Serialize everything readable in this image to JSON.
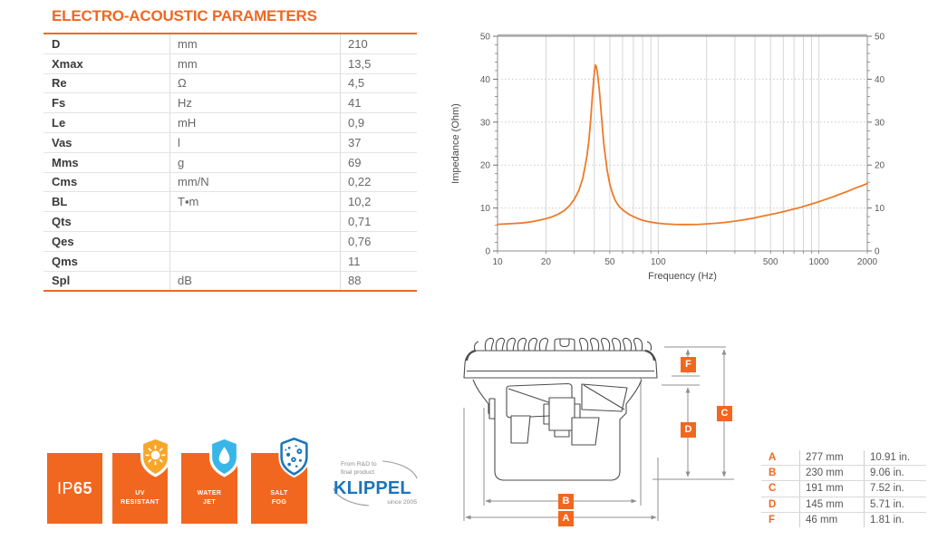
{
  "accent": "#F2671F",
  "page_title": "ELECTRO-ACOUSTIC PARAMETERS",
  "params_table": {
    "rows": [
      {
        "name": "D",
        "unit": "mm",
        "value": "210"
      },
      {
        "name": "Xmax",
        "unit": "mm",
        "value": "13,5"
      },
      {
        "name": "Re",
        "unit": "Ω",
        "value": "4,5"
      },
      {
        "name": "Fs",
        "unit": "Hz",
        "value": "41"
      },
      {
        "name": "Le",
        "unit": "mH",
        "value": "0,9"
      },
      {
        "name": "Vas",
        "unit": "l",
        "value": "37"
      },
      {
        "name": "Mms",
        "unit": "g",
        "value": "69"
      },
      {
        "name": "Cms",
        "unit": "mm/N",
        "value": "0,22"
      },
      {
        "name": "BL",
        "unit": "T▪m",
        "value": "10,2"
      },
      {
        "name": "Qts",
        "unit": "",
        "value": "0,71"
      },
      {
        "name": "Qes",
        "unit": "",
        "value": "0,76"
      },
      {
        "name": "Qms",
        "unit": "",
        "value": "11"
      },
      {
        "name": "Spl",
        "unit": "dB",
        "value": "88"
      }
    ]
  },
  "chart_data": {
    "type": "line",
    "title": "",
    "xlabel": "Frequency (Hz)",
    "ylabel": "Impedance (Ohm)",
    "xscale": "log",
    "xlim": [
      10,
      2000
    ],
    "ylim": [
      0,
      50
    ],
    "x_tick_labels": [
      "10",
      "20",
      "50",
      "100",
      "500",
      "1000",
      "2000"
    ],
    "x_gridlines": [
      20,
      30,
      40,
      50,
      60,
      70,
      80,
      90,
      100,
      200,
      300,
      400,
      500,
      600,
      700,
      800,
      900,
      1000
    ],
    "y_ticks": [
      "0",
      "10",
      "20",
      "30",
      "40",
      "50"
    ],
    "y_gridlines": [
      10,
      20,
      30,
      40
    ],
    "grid": true,
    "legend": "none",
    "line_color": "#EE7A28",
    "resonance_peak": {
      "frequency_hz": 40.6,
      "impedance_ohm": 43.3
    },
    "series": [
      {
        "name": "Impedance",
        "points": [
          [
            10,
            6.2
          ],
          [
            12,
            6.35
          ],
          [
            14,
            6.5
          ],
          [
            16,
            6.75
          ],
          [
            18,
            7.1
          ],
          [
            20,
            7.5
          ],
          [
            22,
            8
          ],
          [
            24,
            8.6
          ],
          [
            26,
            9.4
          ],
          [
            28,
            10.5
          ],
          [
            30,
            12
          ],
          [
            32,
            14
          ],
          [
            34,
            17
          ],
          [
            36,
            22
          ],
          [
            37,
            25.5
          ],
          [
            38,
            30.5
          ],
          [
            39,
            36.5
          ],
          [
            40,
            41.5
          ],
          [
            40.6,
            43.3
          ],
          [
            41.3,
            42.8
          ],
          [
            42,
            41
          ],
          [
            43,
            37.5
          ],
          [
            44,
            33
          ],
          [
            45,
            28.5
          ],
          [
            46,
            24.5
          ],
          [
            48,
            19
          ],
          [
            50,
            15.5
          ],
          [
            52,
            13.3
          ],
          [
            54,
            11.8
          ],
          [
            56,
            10.8
          ],
          [
            58,
            10.1
          ],
          [
            60,
            9.6
          ],
          [
            63,
            9
          ],
          [
            66,
            8.5
          ],
          [
            70,
            8
          ],
          [
            75,
            7.5
          ],
          [
            80,
            7.15
          ],
          [
            85,
            6.9
          ],
          [
            90,
            6.7
          ],
          [
            100,
            6.45
          ],
          [
            110,
            6.3
          ],
          [
            125,
            6.2
          ],
          [
            140,
            6.15
          ],
          [
            160,
            6.15
          ],
          [
            180,
            6.2
          ],
          [
            200,
            6.3
          ],
          [
            230,
            6.45
          ],
          [
            260,
            6.65
          ],
          [
            300,
            6.95
          ],
          [
            340,
            7.25
          ],
          [
            380,
            7.55
          ],
          [
            430,
            8
          ],
          [
            480,
            8.35
          ],
          [
            540,
            8.75
          ],
          [
            600,
            9.15
          ],
          [
            680,
            9.65
          ],
          [
            760,
            10.1
          ],
          [
            850,
            10.65
          ],
          [
            950,
            11.2
          ],
          [
            1050,
            11.75
          ],
          [
            1200,
            12.5
          ],
          [
            1350,
            13.2
          ],
          [
            1500,
            13.85
          ],
          [
            1700,
            14.7
          ],
          [
            1850,
            15.2
          ],
          [
            2000,
            15.7
          ]
        ]
      }
    ]
  },
  "badges": {
    "ip_prefix": "IP",
    "ip_number": "65",
    "uv_line1": "UV",
    "uv_line2": "RESISTANT",
    "water_line1": "WATER",
    "water_line2": "JET",
    "salt_line1": "SALT",
    "salt_line2": "FOG",
    "uv_shield_color": "#F7A62A",
    "water_shield_color": "#38B6E9",
    "salt_shield_color": "#1C76BC"
  },
  "klippel": {
    "tagline1": "From R&D to",
    "tagline2": "final product",
    "brand": "KLIPPEL",
    "since": "since 2005",
    "brand_color": "#1B75BC"
  },
  "dimensions_table": {
    "rows": [
      {
        "label": "A",
        "mm": "277 mm",
        "inches": "10.91 in."
      },
      {
        "label": "B",
        "mm": "230 mm",
        "inches": "9.06 in."
      },
      {
        "label": "C",
        "mm": "191 mm",
        "inches": "7.52 in."
      },
      {
        "label": "D",
        "mm": "145 mm",
        "inches": "5.71 in."
      },
      {
        "label": "F",
        "mm": "46 mm",
        "inches": "1.81 in."
      }
    ]
  },
  "drawing_markers": {
    "a": "A",
    "b": "B",
    "c": "C",
    "d": "D",
    "f": "F"
  }
}
